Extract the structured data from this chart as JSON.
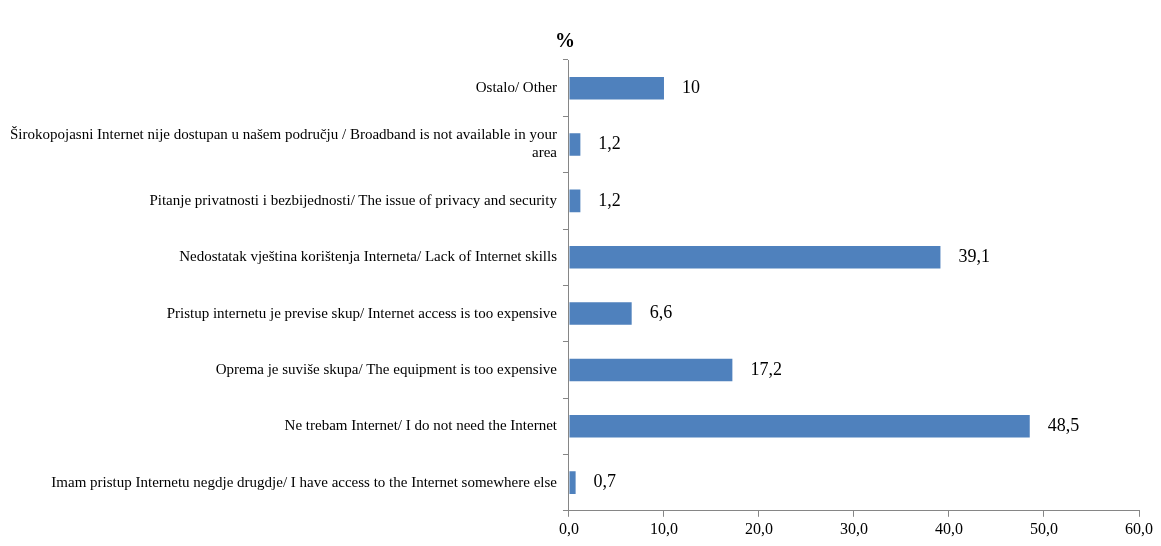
{
  "chart_data": {
    "type": "bar",
    "orientation": "horizontal",
    "xlabel": "%",
    "categories": [
      "Ostalo/ Other",
      "Širokopojasni Internet nije dostupan u našem području / Broadband is not available in your area",
      "Pitanje privatnosti i bezbijednosti/ The issue of privacy and security",
      "Nedostatak vještina korištenja Interneta/ Lack of Internet skills",
      "Pristup internetu je previse skup/ Internet access is too expensive",
      "Oprema je suviše skupa/ The equipment is too expensive",
      "Ne trebam Internet/ I do not need the Internet",
      "Imam pristup Internetu negdje drugdje/ I have access to the Internet somewhere else"
    ],
    "values": [
      10,
      1.2,
      1.2,
      39.1,
      6.6,
      17.2,
      48.5,
      0.7
    ],
    "value_labels": [
      "10",
      "1,2",
      "1,2",
      "39,1",
      "6,6",
      "17,2",
      "48,5",
      "0,7"
    ],
    "color": "#4f81bd",
    "xlim": [
      0,
      60
    ],
    "xticks": [
      {
        "value": 0,
        "label": "0,0"
      },
      {
        "value": 10,
        "label": "10,0"
      },
      {
        "value": 20,
        "label": "20,0"
      },
      {
        "value": 30,
        "label": "30,0"
      },
      {
        "value": 40,
        "label": "40,0"
      },
      {
        "value": 50,
        "label": "50,0"
      },
      {
        "value": 60,
        "label": "60,0"
      }
    ],
    "grid": false,
    "legend": false
  }
}
